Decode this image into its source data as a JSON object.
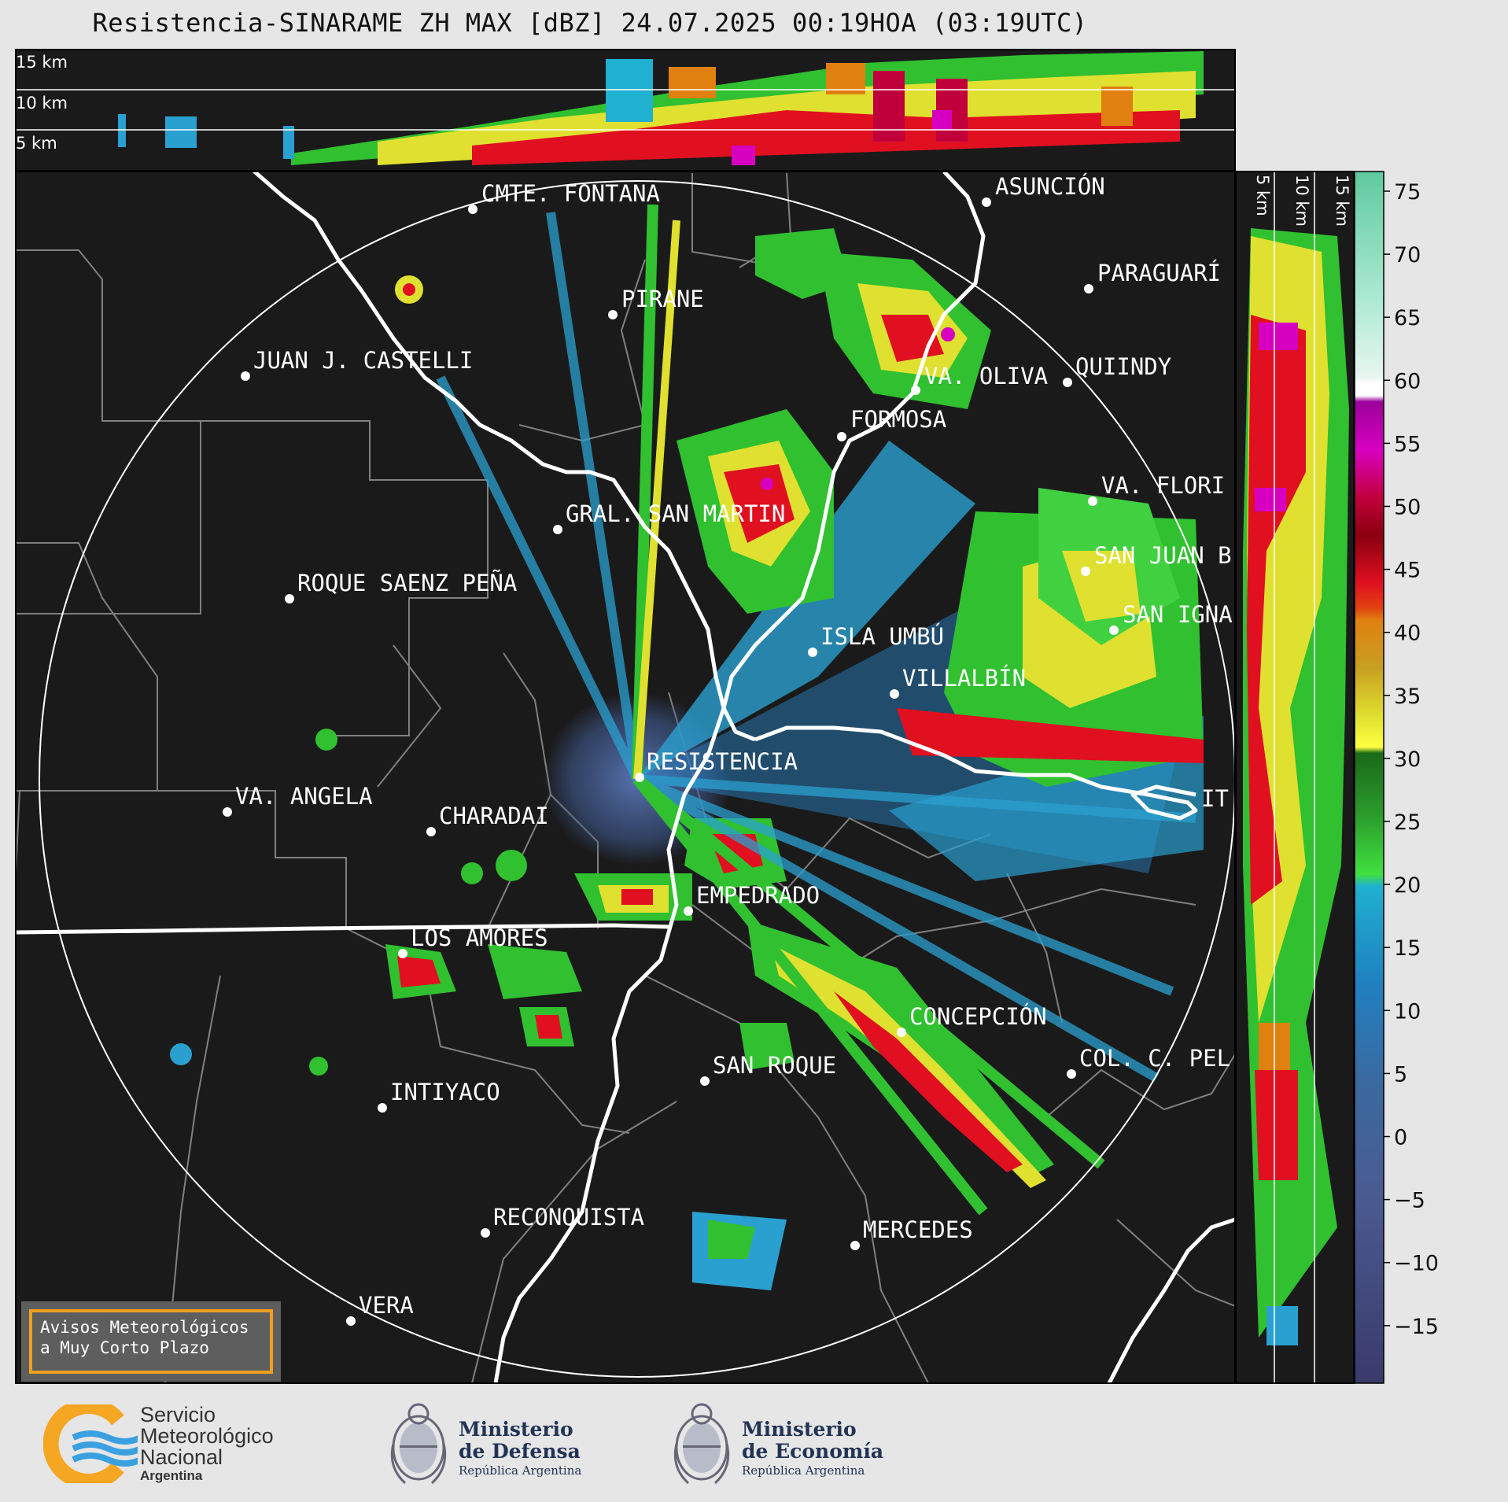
{
  "title": "Resistencia-SINARAME ZH MAX [dBZ] 24.07.2025 00:19HOA (03:19UTC)",
  "top_panel_altitudes": [
    "15 km",
    "10 km",
    "5 km"
  ],
  "side_panel_altitudes": [
    "5 km",
    "10 km",
    "15 km"
  ],
  "colorbar": {
    "ticks": [
      "75",
      "70",
      "65",
      "60",
      "55",
      "50",
      "45",
      "40",
      "35",
      "30",
      "25",
      "20",
      "15",
      "10",
      "5",
      "0",
      "−5",
      "−10",
      "−15"
    ]
  },
  "cities": [
    {
      "name": "CMTE. FONTANA"
    },
    {
      "name": "ASUNCIÓN"
    },
    {
      "name": "PARAGUARÍ"
    },
    {
      "name": "PIRANE"
    },
    {
      "name": "JUAN J. CASTELLI"
    },
    {
      "name": "VA. OLIVA"
    },
    {
      "name": "QUIINDY"
    },
    {
      "name": "FORMOSA"
    },
    {
      "name": "VA. FLORI"
    },
    {
      "name": "GRAL. SAN MARTIN"
    },
    {
      "name": "SAN JUAN B"
    },
    {
      "name": "ROQUE SAENZ PEÑA"
    },
    {
      "name": "SAN IGNA"
    },
    {
      "name": "ISLA UMBÚ"
    },
    {
      "name": "VILLALBÍN"
    },
    {
      "name": "RESISTENCIA"
    },
    {
      "name": "VA. ANGELA"
    },
    {
      "name": "CHARADAI"
    },
    {
      "name": "IT"
    },
    {
      "name": "EMPEDRADO"
    },
    {
      "name": "LOS AMORES"
    },
    {
      "name": "CONCEPCIÓN"
    },
    {
      "name": "SAN ROQUE"
    },
    {
      "name": "COL. C. PEL"
    },
    {
      "name": "INTIYACO"
    },
    {
      "name": "RECONQUISTA"
    },
    {
      "name": "MERCEDES"
    },
    {
      "name": "VERA"
    }
  ],
  "avisos": {
    "line1": "Avisos Meteorológicos",
    "line2": "a Muy Corto Plazo"
  },
  "footer": {
    "smn": {
      "line1": "Servicio",
      "line2": "Meteorológico",
      "line3": "Nacional",
      "line4": "Argentina"
    },
    "defensa": {
      "line1": "Ministerio",
      "line2": "de Defensa",
      "line3": "República Argentina"
    },
    "economia": {
      "line1": "Ministerio",
      "line2": "de Economía",
      "line3": "República Argentina"
    }
  }
}
